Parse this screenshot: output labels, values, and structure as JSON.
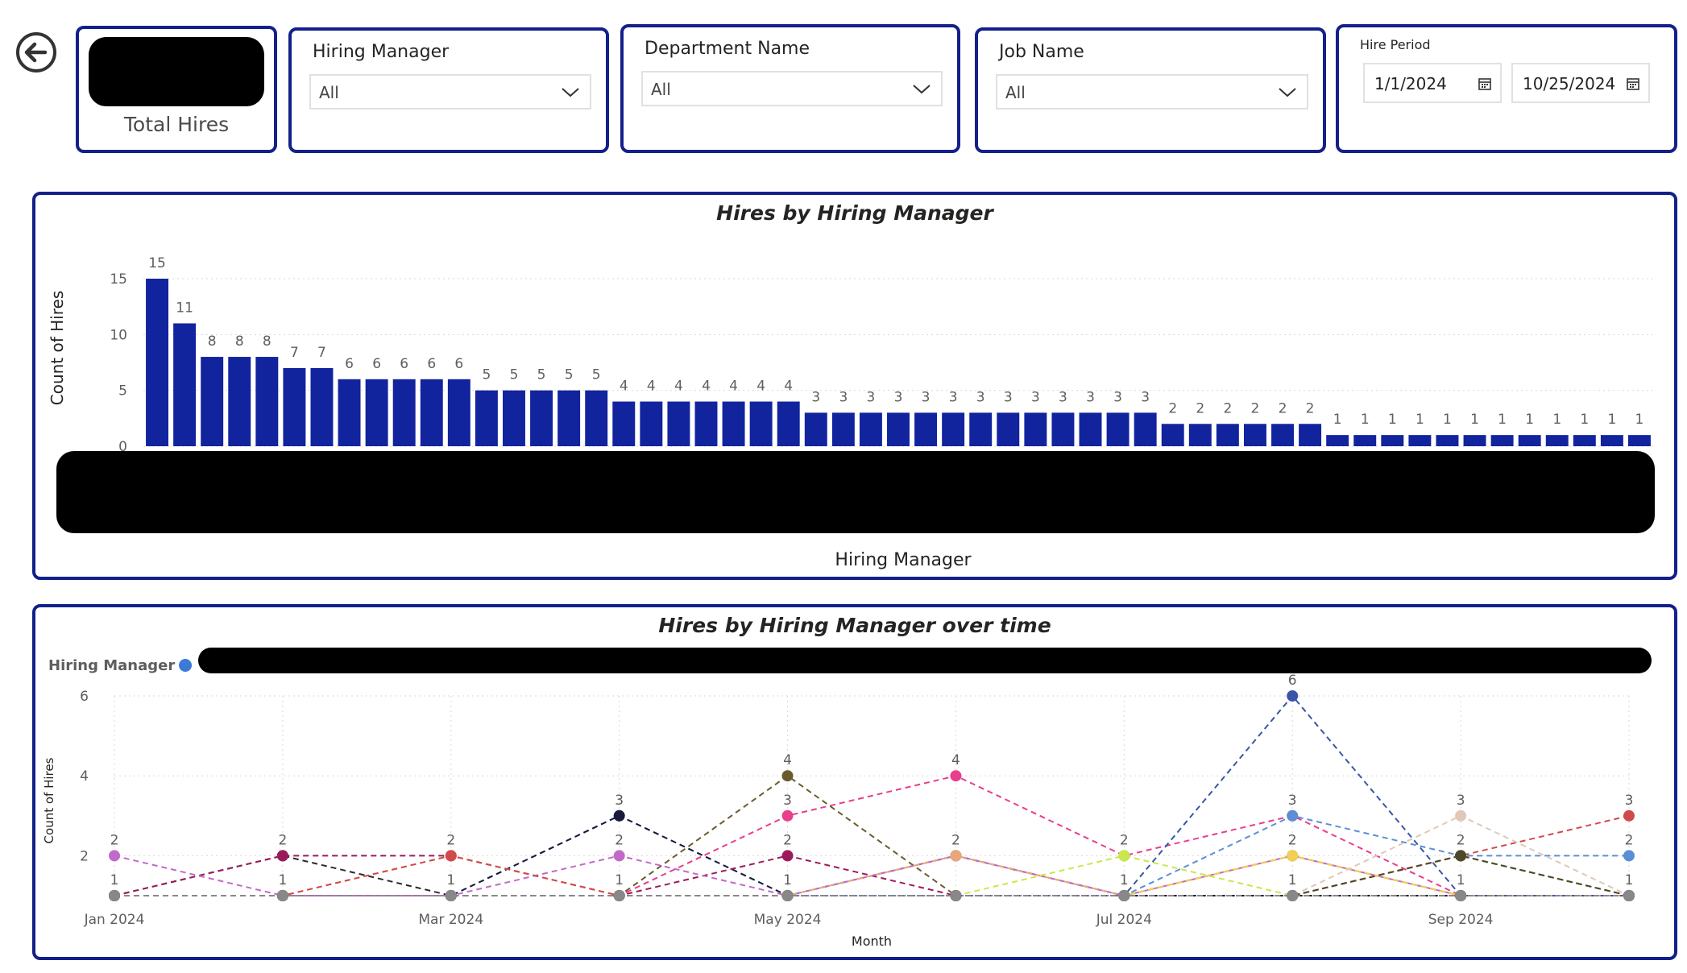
{
  "nav": {
    "back_icon": "back-arrow-icon"
  },
  "kpi": {
    "label": "Total Hires"
  },
  "slicers": {
    "hiring_manager": {
      "title": "Hiring Manager",
      "value": "All"
    },
    "department_name": {
      "title": "Department Name",
      "value": "All"
    },
    "job_name": {
      "title": "Job Name",
      "value": "All"
    },
    "hire_period": {
      "title": "Hire Period",
      "start": "1/1/2024",
      "end": "10/25/2024"
    }
  },
  "colors": {
    "border": "#13208a",
    "bar": "#12239e",
    "grid": "#d9d9d9"
  },
  "chart_data": [
    {
      "type": "bar",
      "title": "Hires by Hiring Manager",
      "xlabel": "Hiring Manager",
      "ylabel": "Count of Hires",
      "yticks": [
        0,
        5,
        10,
        15
      ],
      "ylim": [
        0,
        15
      ],
      "values": [
        15,
        11,
        8,
        8,
        8,
        7,
        7,
        6,
        6,
        6,
        6,
        6,
        5,
        5,
        5,
        5,
        5,
        4,
        4,
        4,
        4,
        4,
        4,
        4,
        3,
        3,
        3,
        3,
        3,
        3,
        3,
        3,
        3,
        3,
        3,
        3,
        3,
        2,
        2,
        2,
        2,
        2,
        2,
        1,
        1,
        1,
        1,
        1,
        1,
        1,
        1,
        1,
        1,
        1,
        1
      ],
      "grid": true
    },
    {
      "type": "line",
      "title": "Hires by Hiring Manager over time",
      "legend_title": "Hiring Manager",
      "xlabel": "Month",
      "ylabel": "Count of Hires",
      "x_ticks": [
        "Jan 2024",
        "Mar 2024",
        "May 2024",
        "Jul 2024",
        "Sep 2024"
      ],
      "y_ticks": [
        2,
        4,
        6
      ],
      "ylim": [
        1,
        6
      ],
      "months": [
        "Jan 2024",
        "Feb 2024",
        "Mar 2024",
        "Apr 2024",
        "May 2024",
        "Jun 2024",
        "Jul 2024",
        "Aug 2024",
        "Sep 2024",
        "Oct 2024"
      ],
      "series": [
        {
          "color": "#e83e8c",
          "values": [
            1,
            1,
            1,
            1,
            3,
            4,
            2,
            3,
            1,
            1
          ]
        },
        {
          "color": "#5b8fd4",
          "values": [
            1,
            1,
            1,
            3,
            1,
            1,
            1,
            3,
            2,
            2
          ]
        },
        {
          "color": "#6b5a2e",
          "values": [
            1,
            1,
            1,
            1,
            4,
            1,
            1,
            1,
            2,
            1
          ]
        },
        {
          "color": "#1a1a3a",
          "values": [
            1,
            1,
            1,
            3,
            1,
            2,
            1,
            1,
            1,
            1
          ]
        },
        {
          "color": "#2b2b2b",
          "values": [
            1,
            2,
            1,
            1,
            1,
            1,
            1,
            1,
            1,
            1
          ]
        },
        {
          "color": "#9b1b5a",
          "values": [
            1,
            2,
            2,
            1,
            2,
            1,
            1,
            2,
            1,
            1
          ]
        },
        {
          "color": "#c16ac9",
          "values": [
            2,
            1,
            1,
            2,
            1,
            2,
            1,
            2,
            1,
            1
          ]
        },
        {
          "color": "#e8a77a",
          "values": [
            1,
            1,
            2,
            1,
            1,
            2,
            1,
            2,
            1,
            1
          ]
        },
        {
          "color": "#c8e84a",
          "values": [
            1,
            1,
            1,
            1,
            1,
            1,
            2,
            1,
            1,
            1
          ]
        },
        {
          "color": "#f0d050",
          "values": [
            1,
            1,
            1,
            1,
            1,
            1,
            1,
            2,
            1,
            1
          ]
        },
        {
          "color": "#d04a4a",
          "values": [
            1,
            1,
            2,
            1,
            1,
            1,
            1,
            1,
            2,
            3
          ]
        },
        {
          "color": "#8c8cc8",
          "values": [
            1,
            1,
            1,
            1,
            1,
            1,
            1,
            1,
            1,
            1
          ]
        },
        {
          "color": "#3a55a8",
          "values": [
            1,
            1,
            1,
            1,
            1,
            1,
            1,
            6,
            1,
            1
          ]
        },
        {
          "color": "#e0c8b8",
          "values": [
            1,
            1,
            1,
            1,
            1,
            1,
            1,
            1,
            3,
            1
          ]
        },
        {
          "color": "#4a4a2a",
          "values": [
            1,
            1,
            1,
            1,
            1,
            1,
            1,
            1,
            2,
            1
          ]
        },
        {
          "color": "#888888",
          "values": [
            1,
            1,
            1,
            1,
            1,
            1,
            1,
            1,
            1,
            1
          ]
        }
      ],
      "point_labels": [
        {
          "month": 0,
          "value": 2,
          "text": "2"
        },
        {
          "month": 0,
          "value": 1,
          "text": "1"
        },
        {
          "month": 1,
          "value": 2,
          "text": "2"
        },
        {
          "month": 1,
          "value": 1,
          "text": "1"
        },
        {
          "month": 2,
          "value": 2,
          "text": "2"
        },
        {
          "month": 2,
          "value": 1,
          "text": "1"
        },
        {
          "month": 3,
          "value": 3,
          "text": "3"
        },
        {
          "month": 3,
          "value": 2,
          "text": "2"
        },
        {
          "month": 3,
          "value": 1,
          "text": "1"
        },
        {
          "month": 4,
          "value": 4,
          "text": "4"
        },
        {
          "month": 4,
          "value": 3,
          "text": "3"
        },
        {
          "month": 4,
          "value": 2,
          "text": "2"
        },
        {
          "month": 4,
          "value": 1,
          "text": "1"
        },
        {
          "month": 5,
          "value": 4,
          "text": "4"
        },
        {
          "month": 5,
          "value": 2,
          "text": "2"
        },
        {
          "month": 6,
          "value": 2,
          "text": "2"
        },
        {
          "month": 6,
          "value": 1,
          "text": "1"
        },
        {
          "month": 7,
          "value": 6,
          "text": "6"
        },
        {
          "month": 7,
          "value": 3,
          "text": "3"
        },
        {
          "month": 7,
          "value": 2,
          "text": "2"
        },
        {
          "month": 7,
          "value": 1,
          "text": "1"
        },
        {
          "month": 8,
          "value": 3,
          "text": "3"
        },
        {
          "month": 8,
          "value": 2,
          "text": "2"
        },
        {
          "month": 8,
          "value": 1,
          "text": "1"
        },
        {
          "month": 9,
          "value": 3,
          "text": "3"
        },
        {
          "month": 9,
          "value": 2,
          "text": "2"
        },
        {
          "month": 9,
          "value": 1,
          "text": "1"
        }
      ]
    }
  ]
}
